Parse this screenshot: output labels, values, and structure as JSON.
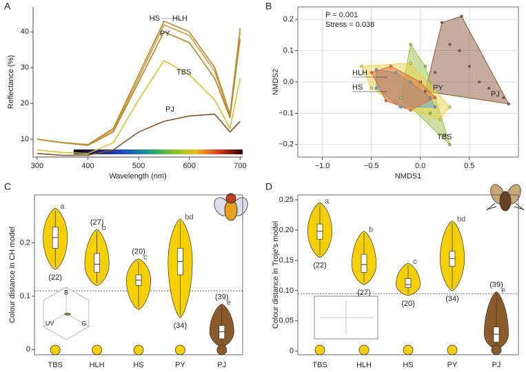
{
  "chart_data": [
    {
      "panel": "A",
      "type": "line",
      "x_label": "Wavelength (nm)",
      "y_label": "Reflectance (%)",
      "x": [
        300,
        350,
        400,
        450,
        500,
        550,
        600,
        650,
        680,
        700
      ],
      "series": [
        {
          "name": "HS",
          "color": "#b8862b",
          "values": [
            10,
            9,
            8.5,
            13,
            28,
            43,
            40,
            30,
            17,
            41
          ]
        },
        {
          "name": "HLH",
          "color": "#c99b3c",
          "values": [
            10,
            9,
            8.5,
            12.5,
            27,
            42,
            39,
            29,
            16,
            40
          ]
        },
        {
          "name": "PY",
          "color": "#b08428",
          "values": [
            10,
            9,
            8.3,
            12,
            26,
            40,
            37,
            27,
            16,
            38
          ]
        },
        {
          "name": "TBS",
          "color": "#cfc23a",
          "values": [
            7,
            6.3,
            6,
            9,
            21,
            32,
            28,
            21,
            13,
            27
          ]
        },
        {
          "name": "PJ",
          "color": "#7d5530",
          "values": [
            6,
            5.5,
            5.5,
            7,
            12,
            15,
            16.5,
            17,
            12,
            15
          ]
        }
      ],
      "xlim": [
        292,
        705
      ],
      "ylim": [
        5,
        47
      ],
      "xticks": [
        300,
        400,
        500,
        600,
        700
      ],
      "yticks": [
        10,
        20,
        30,
        40
      ]
    },
    {
      "panel": "B",
      "type": "scatter",
      "x_label": "NMDS1",
      "y_label": "NMDS2",
      "annotations": [
        "P = 0.001",
        "Stress =  0.038"
      ],
      "series": [
        {
          "name": "PJ",
          "color": "#8b5a3c",
          "x": [
            0.22,
            0.42,
            0.85,
            0.9,
            0.05,
            0.15,
            0.4,
            0.5,
            0.6,
            0.3,
            0.7
          ],
          "y": [
            0.19,
            0.21,
            -0.05,
            -0.07,
            -0.03,
            0.03,
            0.1,
            0.05,
            0,
            0.12,
            -0.02
          ]
        },
        {
          "name": "TBS",
          "color": "#9bc24a",
          "x": [
            -0.1,
            0.3,
            0.25,
            -0.2,
            0,
            0.1,
            0.05
          ],
          "y": [
            0.12,
            -0.2,
            -0.17,
            -0.05,
            0,
            -0.1,
            0.05
          ]
        },
        {
          "name": "PY",
          "color": "#e9d24a",
          "x": [
            -0.6,
            -0.1,
            0.3,
            0.2,
            -0.2,
            -0.5,
            0
          ],
          "y": [
            0.05,
            0.06,
            -0.08,
            -0.12,
            -0.08,
            -0.02,
            0
          ]
        },
        {
          "name": "HLH",
          "color": "#6aa3c8",
          "x": [
            -0.45,
            -0.25,
            0.1,
            0.15,
            -0.2,
            -0.45,
            -0.1
          ],
          "y": [
            0.04,
            0.03,
            -0.05,
            -0.08,
            -0.08,
            -0.02,
            0
          ]
        },
        {
          "name": "HS",
          "color": "#e06a3a",
          "x": [
            -0.5,
            -0.3,
            0,
            0.15,
            -0.1,
            -0.35
          ],
          "y": [
            0.03,
            0.05,
            0,
            -0.05,
            -0.09,
            -0.06
          ]
        }
      ],
      "xlim": [
        -1.25,
        1.0
      ],
      "ylim": [
        -0.24,
        0.24
      ],
      "xticks": [
        {
          "value": -1,
          "label": "−1.0"
        },
        {
          "value": -0.5,
          "label": "−0.5"
        },
        {
          "value": 0,
          "label": "0.0"
        },
        0.5
      ],
      "yticks": [
        {
          "value": -0.2,
          "label": "−0.2"
        },
        {
          "value": -0.1,
          "label": "−0.1"
        },
        {
          "value": 0,
          "label": "0.0"
        },
        0.1,
        0.2
      ],
      "grid": true
    },
    {
      "panel": "C",
      "type": "violin",
      "y_label": "Colour distance in CH model",
      "categories": [
        "TBS",
        "HLH",
        "HS",
        "PY",
        "PJ"
      ],
      "min": [
        0.15,
        0.12,
        0.075,
        0.06,
        0.005
      ],
      "q1": [
        0.19,
        0.145,
        0.12,
        0.14,
        0.02
      ],
      "median": [
        0.21,
        0.16,
        0.13,
        0.165,
        0.033
      ],
      "q3": [
        0.23,
        0.18,
        0.14,
        0.19,
        0.045
      ],
      "max": [
        0.265,
        0.225,
        0.17,
        0.245,
        0.085
      ],
      "n_labels": [
        "(22)",
        "(27)",
        "(20)",
        "(34)",
        "(39)"
      ],
      "letters": [
        "a",
        "b",
        "c",
        "bd",
        "e"
      ],
      "colors": [
        "#f5d000",
        "#f5d000",
        "#f5d000",
        "#f5d000",
        "#8b5a2b"
      ],
      "threshold": 0.11,
      "inset_labels": [
        "B",
        "UV",
        "G"
      ],
      "ylim": [
        -0.01,
        0.29
      ],
      "yticks": [
        0,
        0.1,
        0.2
      ]
    },
    {
      "panel": "D",
      "type": "violin",
      "y_label": "Colour distance in Troje’s model",
      "categories": [
        "TBS",
        "HLH",
        "HS",
        "PY",
        "PJ"
      ],
      "min": [
        0.155,
        0.11,
        0.092,
        0.1,
        0.003
      ],
      "q1": [
        0.185,
        0.13,
        0.105,
        0.14,
        0.015
      ],
      "median": [
        0.198,
        0.143,
        0.11,
        0.153,
        0.028
      ],
      "q3": [
        0.21,
        0.16,
        0.12,
        0.165,
        0.04
      ],
      "max": [
        0.245,
        0.198,
        0.145,
        0.215,
        0.098
      ],
      "n_labels": [
        "(22)",
        "(27)",
        "(20)",
        "(34)",
        "(39)"
      ],
      "letters": [
        "a",
        "b",
        "c",
        "bd",
        "e"
      ],
      "colors": [
        "#f5d000",
        "#f5d000",
        "#f5d000",
        "#f5d000",
        "#8b5a2b"
      ],
      "threshold": 0.095,
      "ylim": [
        -0.006,
        0.258
      ],
      "yticks": [
        0,
        0.05,
        {
          "value": 0.1,
          "label": "0.10"
        },
        0.15,
        {
          "value": 0.2,
          "label": "0.20"
        },
        0.25
      ]
    }
  ]
}
